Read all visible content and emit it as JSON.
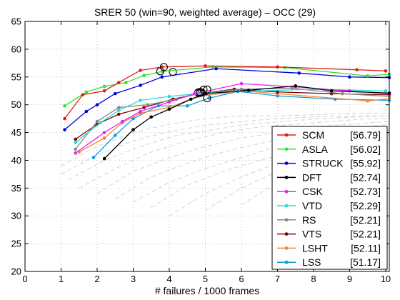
{
  "chart_data": {
    "type": "line",
    "title": "SRER 50 (win=90, weighted average) – OCC (29)",
    "xlabel": "# failures / 1000 frames",
    "ylabel": "",
    "xlim": [
      0,
      10.1
    ],
    "ylim": [
      20,
      65
    ],
    "x_ticks": [
      0,
      1,
      2,
      3,
      4,
      5,
      6,
      7,
      8,
      9,
      10
    ],
    "y_ticks": [
      20,
      25,
      30,
      35,
      40,
      45,
      50,
      55,
      60,
      65
    ],
    "grid": true,
    "legend_position": "bottom-right",
    "series": [
      {
        "name": "SCM",
        "score": "[56.79]",
        "color": "#e41a1c",
        "x": [
          1.1,
          1.6,
          2.2,
          2.6,
          3.2,
          3.8,
          5.0,
          7.0,
          9.2,
          10.0
        ],
        "y": [
          47.5,
          51.8,
          52.5,
          54.0,
          56.2,
          56.8,
          57.0,
          56.8,
          56.3,
          56.1
        ],
        "highlight": [
          3.85,
          56.79
        ]
      },
      {
        "name": "ASLA",
        "score": "[56.02]",
        "color": "#33e033",
        "x": [
          1.1,
          1.7,
          2.2,
          2.8,
          3.3,
          3.8,
          5.2,
          7.2,
          9.5,
          10.1
        ],
        "y": [
          49.8,
          52.3,
          53.3,
          54.0,
          55.3,
          56.0,
          56.8,
          56.7,
          55.2,
          55.5
        ],
        "highlight": [
          3.75,
          56.02
        ]
      },
      {
        "name": "STRUCK",
        "score": "[55.92]",
        "color": "#0000dd",
        "x": [
          1.1,
          1.7,
          2.0,
          2.5,
          3.2,
          3.8,
          5.3,
          7.6,
          9.0,
          10.1
        ],
        "y": [
          45.5,
          48.8,
          50.0,
          52.0,
          53.5,
          55.0,
          56.5,
          55.7,
          55.0,
          54.9
        ],
        "highlight": [
          4.1,
          55.92
        ]
      },
      {
        "name": "DFT",
        "score": "[52.74]",
        "color": "#000000",
        "x": [
          2.2,
          3.0,
          3.5,
          4.0,
          4.6,
          5.0,
          6.2,
          7.5,
          8.5,
          10.1
        ],
        "y": [
          40.3,
          45.5,
          47.8,
          49.2,
          51.0,
          52.0,
          52.6,
          53.4,
          52.5,
          52.1
        ],
        "highlight": [
          5.05,
          52.74
        ]
      },
      {
        "name": "CSK",
        "score": "[52.73]",
        "color": "#ee22ee",
        "x": [
          1.4,
          2.2,
          2.7,
          3.2,
          4.0,
          4.7,
          6.0,
          7.5,
          9.0,
          10.1
        ],
        "y": [
          41.3,
          45.0,
          47.0,
          48.8,
          50.5,
          52.0,
          53.8,
          53.2,
          52.5,
          52.0
        ],
        "highlight": [
          4.95,
          52.73
        ]
      },
      {
        "name": "VTD",
        "score": "[52.29]",
        "color": "#22dddd",
        "x": [
          1.4,
          2.1,
          2.6,
          3.2,
          4.0,
          4.8,
          5.5,
          6.5,
          8.0,
          10.0
        ],
        "y": [
          43.2,
          46.8,
          49.0,
          50.8,
          51.5,
          52.0,
          52.3,
          52.5,
          52.8,
          52.5
        ],
        "highlight": [
          4.85,
          52.29
        ]
      },
      {
        "name": "RS",
        "score": "[52.21]",
        "color": "#888888",
        "x": [
          1.4,
          2.0,
          2.6,
          3.4,
          4.2,
          4.8,
          6.0,
          7.4,
          8.8,
          10.1
        ],
        "y": [
          42.0,
          47.0,
          49.5,
          50.0,
          51.0,
          52.0,
          52.8,
          53.0,
          52.0,
          51.5
        ],
        "highlight": [
          4.8,
          52.21
        ]
      },
      {
        "name": "VTS",
        "score": "[52.21]",
        "color": "#800000",
        "x": [
          1.4,
          2.0,
          2.6,
          3.3,
          4.1,
          4.8,
          5.8,
          7.0,
          8.5,
          10.1
        ],
        "y": [
          43.8,
          46.5,
          48.3,
          49.5,
          51.0,
          52.0,
          52.8,
          52.3,
          52.0,
          51.8
        ],
        "highlight": [
          4.9,
          52.21
        ]
      },
      {
        "name": "LSHT",
        "score": "[52.11]",
        "color": "#ee8833",
        "x": [
          1.5,
          2.2,
          2.7,
          3.2,
          4.0,
          4.8,
          6.0,
          7.0,
          9.5,
          10.1
        ],
        "y": [
          41.5,
          44.0,
          46.8,
          48.5,
          49.5,
          51.5,
          52.5,
          52.0,
          50.7,
          51.1
        ],
        "highlight": [
          4.85,
          52.11
        ]
      },
      {
        "name": "LSS",
        "score": "[51.17]",
        "color": "#1199dd",
        "x": [
          1.9,
          2.5,
          3.0,
          3.7,
          4.5,
          5.1,
          5.9,
          7.0,
          8.6,
          10.1
        ],
        "y": [
          40.5,
          44.5,
          47.5,
          49.8,
          49.8,
          51.2,
          52.4,
          51.6,
          51.0,
          50.8
        ],
        "highlight": [
          5.05,
          51.17
        ]
      }
    ],
    "background_curves": [
      {
        "x": [
          1.0,
          2.0,
          3.0,
          4.0,
          5.0,
          6.0,
          7.0,
          8.0,
          9.0,
          10.1
        ],
        "y": [
          39.0,
          42.5,
          45.0,
          46.5,
          47.5,
          48.0,
          48.0,
          48.2,
          48.5,
          48.5
        ]
      },
      {
        "x": [
          1.0,
          2.0,
          3.0,
          4.0,
          5.0,
          6.0,
          7.0,
          8.0,
          9.0,
          10.1
        ],
        "y": [
          37.5,
          41.0,
          43.5,
          45.2,
          46.3,
          47.0,
          47.5,
          47.8,
          48.0,
          48.0
        ]
      },
      {
        "x": [
          1.2,
          2.2,
          3.2,
          4.2,
          5.2,
          6.2,
          7.2,
          8.2,
          9.2,
          10.1
        ],
        "y": [
          36.5,
          40.0,
          42.5,
          44.5,
          45.5,
          46.5,
          47.0,
          47.5,
          47.8,
          48.0
        ]
      },
      {
        "x": [
          1.5,
          2.5,
          3.5,
          4.5,
          5.5,
          6.5,
          7.5,
          8.5,
          9.5,
          10.1
        ],
        "y": [
          35.0,
          38.5,
          41.5,
          43.5,
          45.0,
          46.0,
          46.5,
          47.0,
          47.5,
          47.5
        ]
      },
      {
        "x": [
          2.0,
          3.0,
          4.0,
          5.0,
          6.0,
          7.0,
          8.0,
          9.0,
          10.1
        ],
        "y": [
          34.0,
          38.0,
          40.5,
          42.5,
          44.0,
          45.0,
          46.0,
          46.5,
          47.0
        ]
      },
      {
        "x": [
          2.5,
          3.5,
          4.5,
          5.5,
          6.5,
          7.5,
          8.5,
          9.5,
          10.1
        ],
        "y": [
          33.0,
          37.0,
          39.5,
          41.5,
          43.0,
          44.5,
          45.5,
          46.0,
          46.5
        ]
      },
      {
        "x": [
          3.0,
          4.0,
          5.0,
          6.0,
          7.0,
          8.0,
          9.0,
          10.1
        ],
        "y": [
          32.5,
          36.0,
          38.5,
          40.5,
          42.5,
          44.0,
          45.0,
          45.5
        ]
      },
      {
        "x": [
          3.5,
          4.5,
          5.5,
          6.5,
          7.5,
          8.5,
          9.5,
          10.1
        ],
        "y": [
          31.5,
          35.5,
          38.0,
          40.0,
          41.5,
          43.0,
          44.0,
          44.5
        ]
      },
      {
        "x": [
          4.0,
          5.0,
          6.0,
          7.0,
          8.0,
          9.0,
          10.1
        ],
        "y": [
          30.0,
          34.0,
          37.0,
          39.5,
          41.5,
          43.0,
          44.0
        ]
      },
      {
        "x": [
          5.0,
          6.0,
          7.0,
          8.0,
          9.0,
          10.1
        ],
        "y": [
          31.0,
          35.0,
          38.0,
          40.5,
          42.0,
          43.5
        ]
      },
      {
        "x": [
          6.0,
          7.0,
          8.0,
          9.0,
          10.1
        ],
        "y": [
          32.0,
          36.0,
          39.0,
          41.5,
          43.0
        ]
      }
    ]
  }
}
